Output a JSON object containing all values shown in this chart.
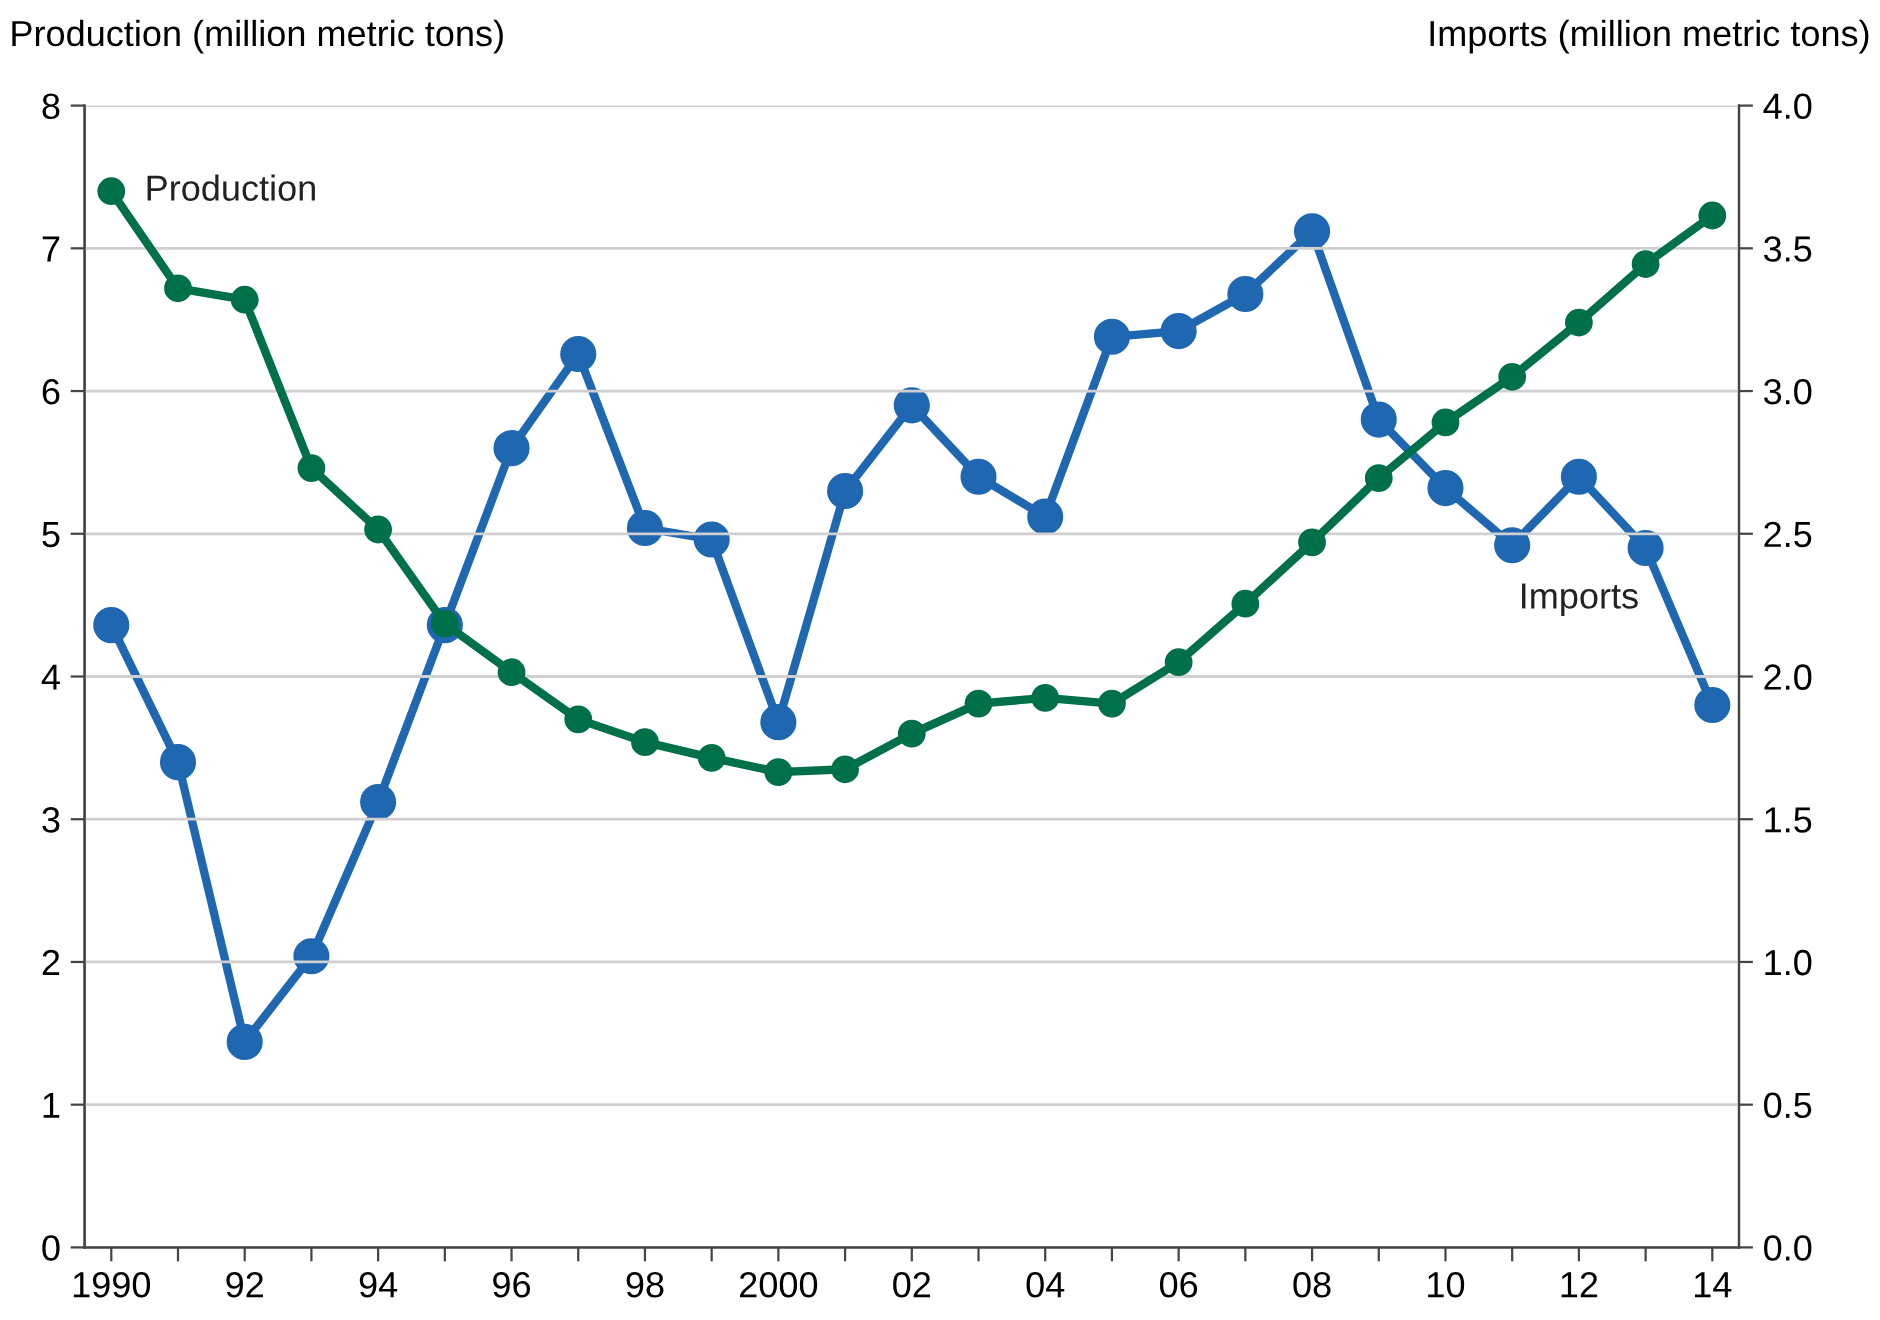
{
  "chart_data": {
    "type": "line",
    "ylabel": "Production (million metric tons)",
    "y2label": "Imports (million metric tons)",
    "x": [
      1990,
      1991,
      1992,
      1993,
      1994,
      1995,
      1996,
      1997,
      1998,
      1999,
      2000,
      2001,
      2002,
      2003,
      2004,
      2005,
      2006,
      2007,
      2008,
      2009,
      2010,
      2011,
      2012,
      2013,
      2014
    ],
    "series": [
      {
        "name": "Production",
        "color": "#00704a",
        "values": [
          7.4,
          6.72,
          6.64,
          5.46,
          5.03,
          4.37,
          4.03,
          3.7,
          3.54,
          3.43,
          3.33,
          3.35,
          3.6,
          3.81,
          3.85,
          3.81,
          4.1,
          4.51,
          4.94,
          5.39,
          5.78,
          6.1,
          6.48,
          6.89,
          7.23
        ]
      },
      {
        "name": "Imports",
        "color": "#1f67b1",
        "axis": "y2",
        "values": [
          2.18,
          1.7,
          0.72,
          1.02,
          1.56,
          2.18,
          2.8,
          3.13,
          2.52,
          2.48,
          1.84,
          2.65,
          2.95,
          2.7,
          2.56,
          3.19,
          3.21,
          3.34,
          3.56,
          2.9,
          2.66,
          2.46,
          2.7,
          2.45,
          1.9
        ]
      }
    ],
    "xlim": [
      1989.6,
      2014.4
    ],
    "xticks": [
      {
        "value": 1990,
        "label": "1990"
      },
      {
        "value": 1991,
        "label": null
      },
      {
        "value": 1992,
        "label": "92"
      },
      {
        "value": 1993,
        "label": null
      },
      {
        "value": 1994,
        "label": "94"
      },
      {
        "value": 1995,
        "label": null
      },
      {
        "value": 1996,
        "label": "96"
      },
      {
        "value": 1997,
        "label": null
      },
      {
        "value": 1998,
        "label": "98"
      },
      {
        "value": 1999,
        "label": null
      },
      {
        "value": 2000,
        "label": "2000"
      },
      {
        "value": 2001,
        "label": null
      },
      {
        "value": 2002,
        "label": "02"
      },
      {
        "value": 2003,
        "label": null
      },
      {
        "value": 2004,
        "label": "04"
      },
      {
        "value": 2005,
        "label": null
      },
      {
        "value": 2006,
        "label": "06"
      },
      {
        "value": 2007,
        "label": null
      },
      {
        "value": 2008,
        "label": "08"
      },
      {
        "value": 2009,
        "label": null
      },
      {
        "value": 2010,
        "label": "10"
      },
      {
        "value": 2011,
        "label": null
      },
      {
        "value": 2012,
        "label": "12"
      },
      {
        "value": 2013,
        "label": null
      },
      {
        "value": 2014,
        "label": "14"
      }
    ],
    "ylim": [
      0,
      8
    ],
    "yticks": [
      0,
      1,
      2,
      3,
      4,
      5,
      6,
      7,
      8
    ],
    "y2lim": [
      0,
      4
    ],
    "y2ticks": [
      {
        "value": 0,
        "label": "0.0"
      },
      {
        "value": 0.5,
        "label": "0.5"
      },
      {
        "value": 1,
        "label": "1.0"
      },
      {
        "value": 1.5,
        "label": "1.5"
      },
      {
        "value": 2,
        "label": "2.0"
      },
      {
        "value": 2.5,
        "label": "2.5"
      },
      {
        "value": 3,
        "label": "3.0"
      },
      {
        "value": 3.5,
        "label": "3.5"
      },
      {
        "value": 4,
        "label": "4.0"
      }
    ],
    "grid": "y",
    "marker": "circle",
    "line_style": "solid",
    "legend": false
  }
}
